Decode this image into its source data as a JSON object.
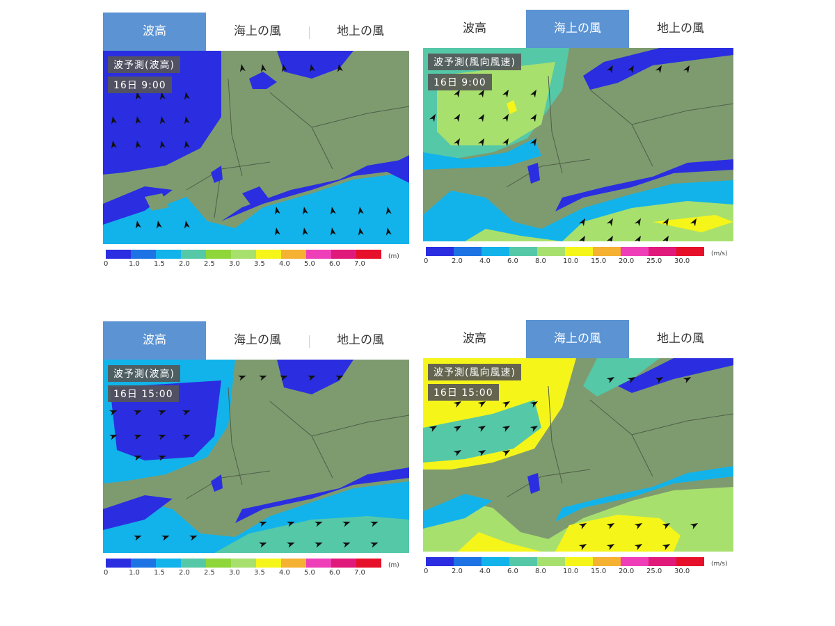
{
  "tabs": [
    "波高",
    "海上の風",
    "地上の風"
  ],
  "panels": [
    {
      "active": 0,
      "title": "波予測(波高)",
      "time": "16日  9:00",
      "legend": "wave"
    },
    {
      "active": 1,
      "title": "波予測(風向風速)",
      "time": "16日  9:00",
      "legend": "wind"
    },
    {
      "active": 0,
      "title": "波予測(波高)",
      "time": "16日 15:00",
      "legend": "wave"
    },
    {
      "active": 1,
      "title": "波予測(風向風速)",
      "time": "16日 15:00",
      "legend": "wind"
    }
  ],
  "legends": {
    "wave": {
      "unit": "(m)",
      "ticks": [
        "0",
        "1.0",
        "1.5",
        "2.0",
        "2.5",
        "3.0",
        "3.5",
        "4.0",
        "5.0",
        "6.0",
        "7.0"
      ],
      "colors": [
        "#2a2ee0",
        "#1d73e3",
        "#12b3ea",
        "#55c8a8",
        "#8fd63a",
        "#a8e06e",
        "#f5f51a",
        "#f4b132",
        "#ee3fb8",
        "#e01a7a",
        "#e6102a"
      ]
    },
    "wind": {
      "unit": "(m/s)",
      "ticks": [
        "0",
        "2.0",
        "4.0",
        "6.0",
        "8.0",
        "10.0",
        "15.0",
        "20.0",
        "25.0",
        "30.0"
      ],
      "colors": [
        "#2a2ee0",
        "#1d73e3",
        "#12b3ea",
        "#55c8a8",
        "#a8e06e",
        "#f5f51a",
        "#f4b132",
        "#ee3fb8",
        "#e01a7a",
        "#e6102a"
      ]
    }
  },
  "colors": {
    "land": "#7e9b6f",
    "tab_active": "#5b93d3",
    "arrow": "#111111",
    "label_bg": "#555555"
  },
  "icons": {
    "wind_arrow": "arrowhead-icon"
  }
}
